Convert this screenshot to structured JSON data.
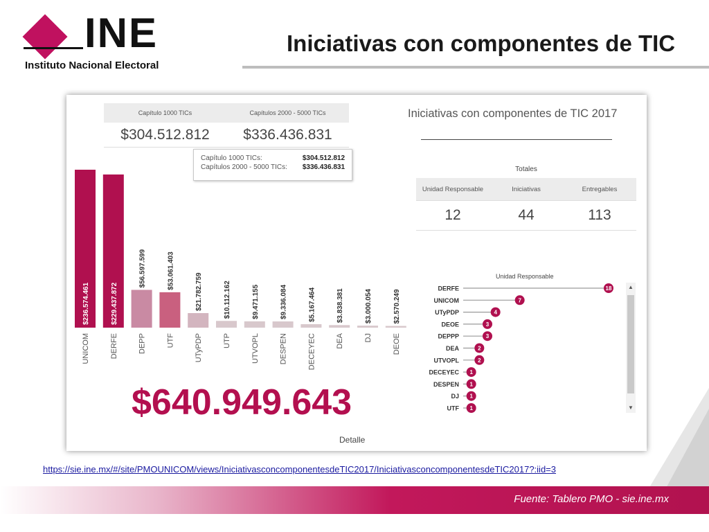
{
  "header": {
    "logo_text": "INE",
    "logo_subtitle": "Instituto Nacional Electoral",
    "title": "Iniciativas con componentes de TIC"
  },
  "capitulos": {
    "headers": [
      "Capítulo 1000 TICs",
      "Capítulos 2000 - 5000 TICs"
    ],
    "values": [
      "$304.512.812",
      "$336.436.831"
    ]
  },
  "tooltip": {
    "rows": [
      {
        "label": "Capítulo 1000 TICs:",
        "value": "$304.512.812"
      },
      {
        "label": "Capítulos 2000 - 5000 TICs:",
        "value": "$336.436.831"
      }
    ]
  },
  "big_total": "$640.949.643",
  "detalle_label": "Detalle",
  "right_panel": {
    "title": "Iniciativas con componentes de TIC 2017",
    "totales_label": "Totales",
    "headers": [
      "Unidad Responsable",
      "Iniciativas",
      "Entregables"
    ],
    "values": [
      "12",
      "44",
      "113"
    ],
    "ur_title": "Unidad Responsable"
  },
  "chart_data": [
    {
      "type": "bar",
      "categories": [
        "UNICOM",
        "DERFE",
        "DEPP",
        "UTF",
        "UTyPDP",
        "UTP",
        "UTVOPL",
        "DESPEN",
        "DECEYEC",
        "DEA",
        "DJ",
        "DEOE"
      ],
      "values": [
        236574461,
        229437872,
        56597599,
        53061403,
        21782759,
        10112162,
        9471155,
        9336084,
        5167464,
        3838381,
        3000054,
        2570249
      ],
      "labels": [
        "$236.574.461",
        "$229.437.872",
        "$56.597.599",
        "$53.061.403",
        "$21.782.759",
        "$10.112.162",
        "$9.471.155",
        "$9.336.084",
        "$5.167.464",
        "$3.838.381",
        "$3.000.054",
        "$2.570.249"
      ],
      "colors": [
        "#b0104f",
        "#b0104f",
        "#c98aa3",
        "#c9607f",
        "#d3b5bf",
        "#d8c8cc",
        "#d8c8cc",
        "#d8c8cc",
        "#d8c8cc",
        "#d8c8cc",
        "#d8c8cc",
        "#d8c8cc"
      ],
      "title": "",
      "xlabel": "Detalle",
      "ylabel": "",
      "ylim": [
        0,
        250000000
      ]
    },
    {
      "type": "lollipop",
      "title": "Unidad Responsable",
      "categories": [
        "DERFE",
        "UNICOM",
        "UTyPDP",
        "DEOE",
        "DEPPP",
        "DEA",
        "UTVOPL",
        "DECEYEC",
        "DESPEN",
        "DJ",
        "UTF"
      ],
      "values": [
        18,
        7,
        4,
        3,
        3,
        2,
        2,
        1,
        1,
        1,
        1
      ],
      "xlim": [
        0,
        18
      ],
      "color": "#b0104f"
    }
  ],
  "footer": {
    "url": "https://sie.ine.mx/#/site/PMOUNICOM/views/IniciativasconcomponentesdeTIC2017/IniciativasconcomponentesdeTIC2017?:iid=3",
    "source": "Fuente: Tablero PMO - sie.ine.mx"
  }
}
